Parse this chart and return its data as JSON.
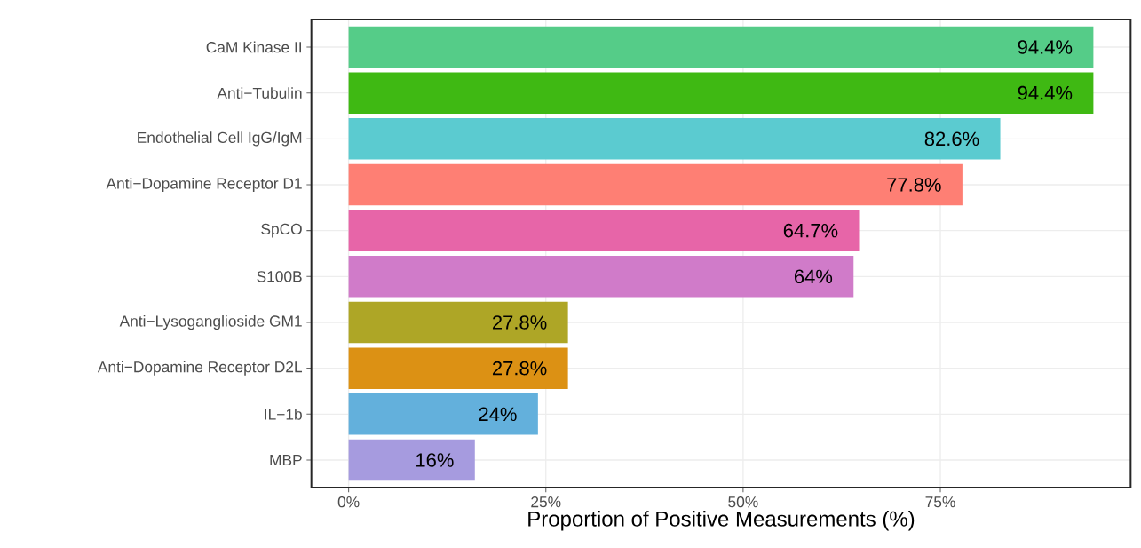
{
  "chart_data": {
    "type": "bar",
    "orientation": "horizontal",
    "xlabel": "Proportion of Positive Measurements (%)",
    "categories": [
      "CaM Kinase II",
      "Anti−Tubulin",
      "Endothelial Cell IgG/IgM",
      "Anti−Dopamine Receptor D1",
      "SpCO",
      "S100B",
      "Anti−Lysoganglioside GM1",
      "Anti−Dopamine Receptor D2L",
      "IL−1b",
      "MBP"
    ],
    "values": [
      94.4,
      94.4,
      82.6,
      77.8,
      64.7,
      64,
      27.8,
      27.8,
      24,
      16
    ],
    "colors": [
      "#55cc88",
      "#3fb913",
      "#5bcbd0",
      "#fe7f74",
      "#e765a8",
      "#d07bc9",
      "#aea626",
      "#dc9114",
      "#63b0dc",
      "#a69bdf"
    ],
    "value_labels": [
      "94.4%",
      "94.4%",
      "82.6%",
      "77.8%",
      "64.7%",
      "64%",
      "27.8%",
      "27.8%",
      "24%",
      "16%"
    ],
    "xlim": [
      -4.72,
      99.12
    ],
    "xticks": [
      {
        "value": 0,
        "label": "0%"
      },
      {
        "value": 25,
        "label": "25%"
      },
      {
        "value": 50,
        "label": "50%"
      },
      {
        "value": 75,
        "label": "75%"
      }
    ],
    "grid": true
  }
}
